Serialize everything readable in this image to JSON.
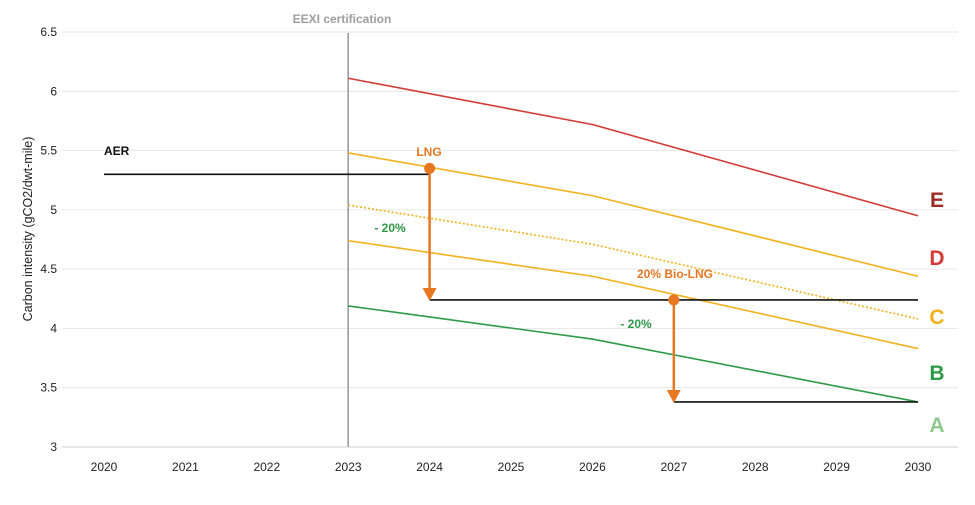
{
  "chart_data": {
    "type": "line",
    "title": "",
    "xlabel": "",
    "ylabel": "Carbon intensity (gCO2/dwt-mile)",
    "xlim": [
      2020,
      2030
    ],
    "ylim": [
      3,
      6.5
    ],
    "x_ticks": [
      "2020",
      "2021",
      "2022",
      "2023",
      "2024",
      "2025",
      "2026",
      "2027",
      "2028",
      "2029",
      "2030"
    ],
    "y_ticks": [
      "3",
      "3.5",
      "4",
      "4.5",
      "5",
      "5.5",
      "6",
      "6.5"
    ],
    "grid": "horizontal",
    "colors": {
      "red": "#d43a36",
      "orange": "#f3b11c",
      "green": "#2e9a48",
      "black": "#111111",
      "accent": "#e87722",
      "grey": "#9e9e9e",
      "band_e": "#9b2b24",
      "band_a": "#8fc98f"
    },
    "series": [
      {
        "key": "ed",
        "color": "#d43a36",
        "style": "solid",
        "x": [
          2023,
          2026,
          2030
        ],
        "y": [
          6.11,
          5.72,
          4.95
        ]
      },
      {
        "key": "dc",
        "color": "#f3b11c",
        "style": "solid",
        "x": [
          2023,
          2026,
          2030
        ],
        "y": [
          5.48,
          5.12,
          4.44
        ]
      },
      {
        "key": "mid",
        "color": "#f3b11c",
        "style": "dotted",
        "x": [
          2023,
          2026,
          2030
        ],
        "y": [
          5.04,
          4.71,
          4.08
        ]
      },
      {
        "key": "cb",
        "color": "#f3b11c",
        "style": "solid",
        "x": [
          2023,
          2026,
          2030
        ],
        "y": [
          4.74,
          4.44,
          3.83
        ]
      },
      {
        "key": "ba",
        "color": "#2e9a48",
        "style": "solid",
        "x": [
          2023,
          2026,
          2030
        ],
        "y": [
          4.19,
          3.91,
          3.38
        ]
      },
      {
        "key": "aer",
        "color": "#111111",
        "style": "solid",
        "x": [
          2020,
          2024
        ],
        "y": [
          5.3,
          5.3
        ]
      },
      {
        "key": "lng_level",
        "color": "#111111",
        "style": "solid",
        "x": [
          2024,
          2030
        ],
        "y": [
          4.24,
          4.24
        ]
      },
      {
        "key": "biolng_level",
        "color": "#111111",
        "style": "solid",
        "x": [
          2027,
          2030
        ],
        "y": [
          3.38,
          3.38
        ]
      }
    ],
    "markers": [
      {
        "x": 2024,
        "y": 5.35,
        "color": "#e87722"
      },
      {
        "x": 2027,
        "y": 4.24,
        "color": "#e87722"
      }
    ],
    "arrows": [
      {
        "x": 2024,
        "from": 5.35,
        "to": 4.24,
        "color": "#e87722"
      },
      {
        "x": 2027,
        "from": 4.24,
        "to": 3.38,
        "color": "#e87722"
      }
    ],
    "vline": {
      "x": 2023,
      "color": "#9e9e9e"
    },
    "annotations": {
      "eexi": "EEXI certification",
      "aer": "AER",
      "lng": "LNG",
      "pct1": "- 20%",
      "biolng": "20% Bio-LNG",
      "pct2": "- 20%"
    },
    "band_labels": [
      "E",
      "D",
      "C",
      "B",
      "A"
    ]
  }
}
